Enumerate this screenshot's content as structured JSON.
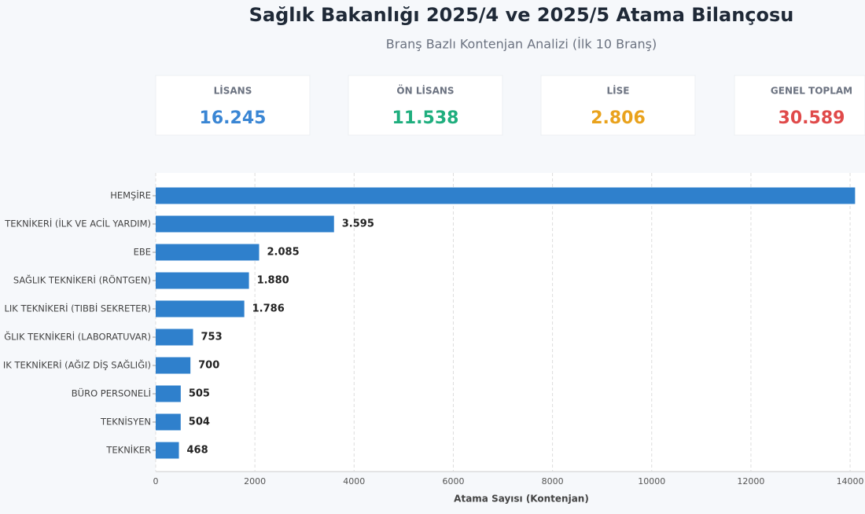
{
  "header": {
    "title": "Sağlık Bakanlığı 2025/4 ve 2025/5 Atama Bilançosu",
    "subtitle": "Branş Bazlı Kontenjan Analizi (İlk 10 Branş)"
  },
  "cards": [
    {
      "label": "LİSANS",
      "value": "16.245",
      "color": "#3a86d4"
    },
    {
      "label": "ÖN LİSANS",
      "value": "11.538",
      "color": "#1fae7e"
    },
    {
      "label": "LİSE",
      "value": "2.806",
      "color": "#e9a21c"
    },
    {
      "label": "GENEL TOPLAM",
      "value": "30.589",
      "color": "#e04a4a"
    }
  ],
  "chart_data": {
    "type": "barh",
    "xlabel": "Atama Sayısı (Kontenjan)",
    "color": "#2f80cc",
    "categories": [
      "HEMŞİRE",
      "TEKNİKERİ (İLK VE ACİL YARDIM)",
      "EBE",
      "SAĞLIK TEKNİKERİ (RÖNTGEN)",
      "LIK TEKNİKERİ (TIBBİ SEKRETER)",
      "ĞLIK TEKNİKERİ (LABORATUVAR)",
      "IK TEKNİKERİ (AĞIZ DİŞ SAĞLIĞI)",
      "BÜRO PERSONELİ",
      "TEKNİSYEN",
      "TEKNİKER"
    ],
    "values": [
      14100,
      3595,
      2085,
      1880,
      1786,
      753,
      700,
      505,
      504,
      468
    ],
    "value_labels": [
      null,
      "3.595",
      "2.085",
      "1.880",
      "1.786",
      "753",
      "700",
      "505",
      "504",
      "468"
    ],
    "xlim": [
      0,
      14300
    ],
    "xticks": [
      0,
      2000,
      4000,
      6000,
      8000,
      10000,
      12000,
      14000
    ],
    "grid": true
  }
}
